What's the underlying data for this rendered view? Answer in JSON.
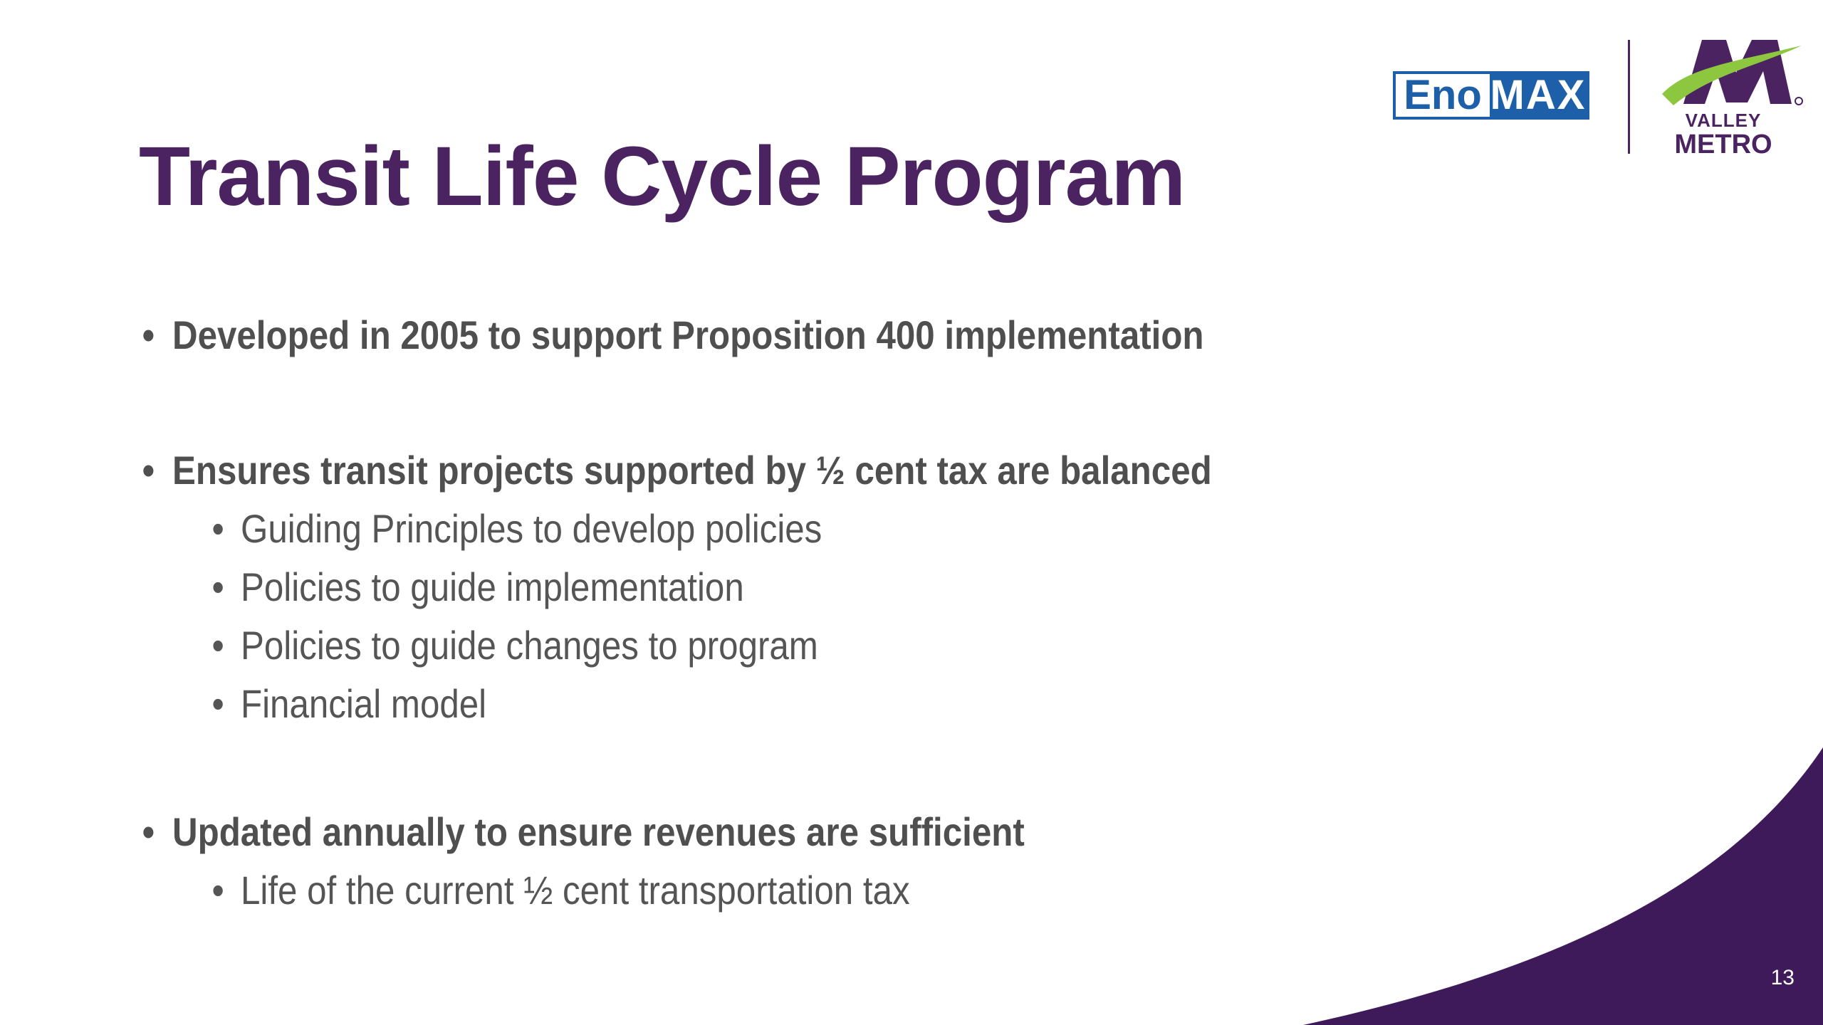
{
  "slide": {
    "title": "Transit Life Cycle Program",
    "bullets": [
      {
        "level": 1,
        "text": "Developed in 2005 to support Proposition 400 implementation"
      },
      {
        "level": 1,
        "text": "Ensures transit projects supported by ½ cent tax are balanced"
      },
      {
        "level": 2,
        "text": "Guiding Principles to develop policies"
      },
      {
        "level": 2,
        "text": "Policies to guide implementation"
      },
      {
        "level": 2,
        "text": "Policies to guide changes to program"
      },
      {
        "level": 2,
        "text": "Financial model"
      },
      {
        "level": 1,
        "text": "Updated annually to ensure revenues are sufficient"
      },
      {
        "level": 2,
        "text": "Life of the current ½ cent transportation tax"
      }
    ],
    "bullet_glyph": "•",
    "page_number": "13"
  },
  "logos": {
    "enomax": {
      "part1": "Eno",
      "part2": "MAX"
    },
    "valley_metro": {
      "line1": "VALLEY",
      "line2": "METRO"
    }
  },
  "colors": {
    "brand_purple": "#4c2361",
    "accent_green": "#8dc63f",
    "eno_blue": "#1d5fa8",
    "body_text": "#4f4f4f"
  }
}
